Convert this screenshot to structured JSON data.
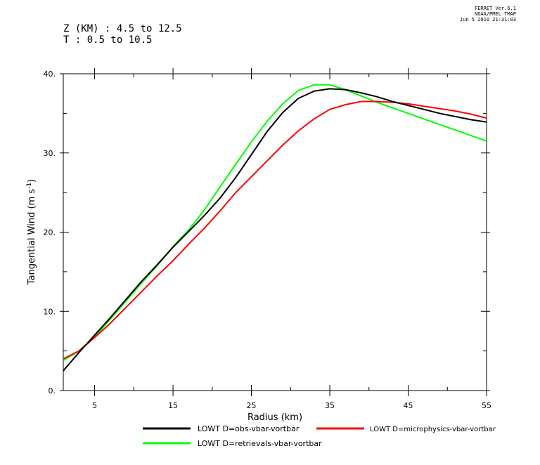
{
  "header": {
    "stamp_line1": "FERRET Ver.6.1",
    "stamp_line2": "NOAA/PMEL TMAP",
    "stamp_line3": "Jun 5 2010 21:31:03",
    "subtitle_z": "Z (KM) : 4.5 to 12.5",
    "subtitle_t": "T : 0.5 to 10.5"
  },
  "chart_data": {
    "type": "line",
    "xlabel": "Radius (km)",
    "ylabel": "Tangential Wind (m s",
    "ylabel_sup": "-1",
    "ylabel_close": ")",
    "xlim": [
      1,
      55
    ],
    "ylim": [
      0,
      40
    ],
    "xticks": [
      5,
      15,
      25,
      35,
      45,
      55
    ],
    "xtick_labels": [
      "5",
      "15",
      "25",
      "35",
      "45",
      "55"
    ],
    "yticks": [
      0,
      10,
      20,
      30,
      40
    ],
    "ytick_labels": [
      "0.",
      "10.",
      "20.",
      "30.",
      "40."
    ],
    "x": [
      1,
      3,
      5,
      7,
      9,
      11,
      13,
      15,
      17,
      19,
      21,
      23,
      25,
      27,
      29,
      31,
      33,
      35,
      37,
      39,
      41,
      43,
      45,
      47,
      49,
      51,
      53,
      55
    ],
    "series": [
      {
        "name": "LOWT D=obs-vbar-vortbar",
        "color": "#000000",
        "values": [
          2.5,
          4.8,
          7.0,
          9.2,
          11.5,
          13.8,
          15.9,
          18.1,
          20.1,
          22.1,
          24.3,
          26.9,
          29.8,
          32.7,
          35.1,
          36.9,
          37.8,
          38.1,
          38.0,
          37.6,
          37.1,
          36.5,
          36.0,
          35.5,
          35.0,
          34.6,
          34.2,
          33.9
        ]
      },
      {
        "name": "LOWT D=microphysics-vbar-vortbar",
        "color": "#ff0000",
        "values": [
          4.0,
          5.0,
          6.7,
          8.5,
          10.5,
          12.5,
          14.5,
          16.4,
          18.5,
          20.5,
          22.7,
          25.0,
          27.0,
          29.0,
          31.0,
          32.8,
          34.3,
          35.5,
          36.1,
          36.5,
          36.5,
          36.4,
          36.2,
          35.9,
          35.6,
          35.3,
          34.9,
          34.4
        ]
      },
      {
        "name": "LOWT D=retrievals-vbar-vortbar",
        "color": "#00ff00",
        "values": [
          3.8,
          5.0,
          6.8,
          9.0,
          11.3,
          13.6,
          15.8,
          18.2,
          20.3,
          22.8,
          25.7,
          28.6,
          31.4,
          34.0,
          36.2,
          37.9,
          38.6,
          38.6,
          38.0,
          37.2,
          36.4,
          35.7,
          35.0,
          34.3,
          33.6,
          32.9,
          32.2,
          31.5
        ]
      }
    ]
  }
}
